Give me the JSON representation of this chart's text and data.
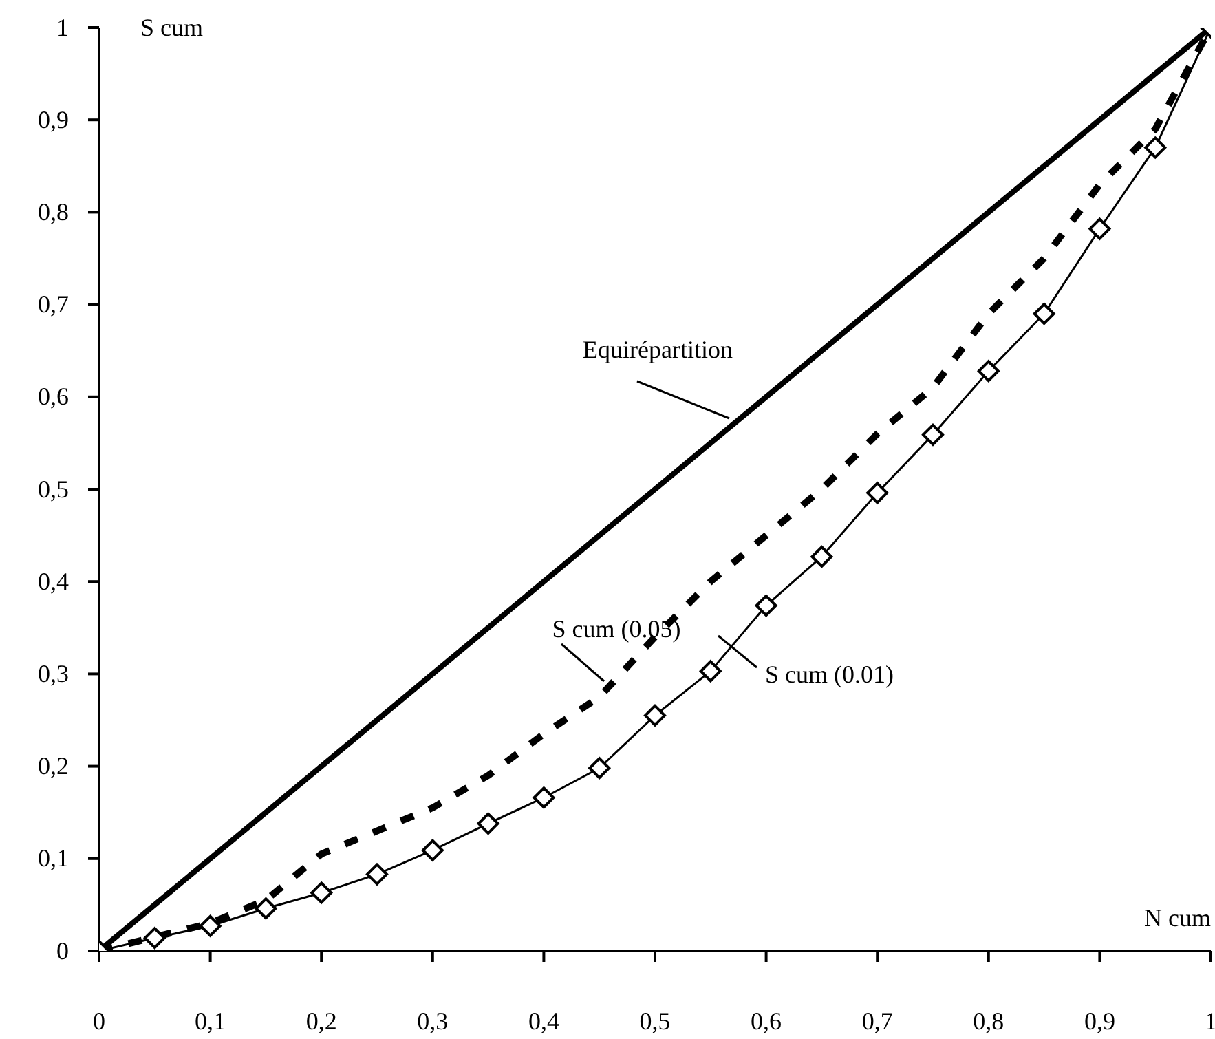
{
  "chart_data": {
    "type": "line",
    "xlabel": "N cum",
    "ylabel": "S cum",
    "xlim": [
      0,
      1
    ],
    "ylim": [
      0,
      1
    ],
    "xticks": [
      0,
      {
        "value": 0.1,
        "label": "0,1"
      },
      {
        "value": 0.2,
        "label": "0,2"
      },
      {
        "value": 0.3,
        "label": "0,3"
      },
      {
        "value": 0.4,
        "label": "0,4"
      },
      {
        "value": 0.5,
        "label": "0,5"
      },
      {
        "value": 0.6,
        "label": "0,6"
      },
      {
        "value": 0.7,
        "label": "0,7"
      },
      {
        "value": 0.8,
        "label": "0,8"
      },
      {
        "value": 0.9,
        "label": "0,9"
      },
      1
    ],
    "yticks": [
      0,
      {
        "value": 0.1,
        "label": "0,1"
      },
      {
        "value": 0.2,
        "label": "0,2"
      },
      {
        "value": 0.3,
        "label": "0,3"
      },
      {
        "value": 0.4,
        "label": "0,4"
      },
      {
        "value": 0.5,
        "label": "0,5"
      },
      {
        "value": 0.6,
        "label": "0,6"
      },
      {
        "value": 0.7,
        "label": "0,7"
      },
      {
        "value": 0.8,
        "label": "0,8"
      },
      {
        "value": 0.9,
        "label": "0,9"
      },
      1
    ],
    "grid": false,
    "legend": false,
    "series": [
      {
        "name": "Equirépartition",
        "color": "#000000",
        "line_style": "solid",
        "marker": "none",
        "x": [
          0,
          0.1,
          0.2,
          0.3,
          0.4,
          0.5,
          0.6,
          0.7,
          0.8,
          0.9,
          1
        ],
        "values": [
          0,
          0.1,
          0.2,
          0.3,
          0.4,
          0.5,
          0.6,
          0.7,
          0.8,
          0.9,
          1
        ]
      },
      {
        "name": "S cum (0.05)",
        "color": "#000000",
        "line_style": "dashed",
        "marker": "none",
        "x": [
          0,
          0.05,
          0.1,
          0.15,
          0.2,
          0.25,
          0.3,
          0.35,
          0.4,
          0.45,
          0.5,
          0.55,
          0.6,
          0.65,
          0.7,
          0.75,
          0.8,
          0.85,
          0.9,
          0.95,
          1
        ],
        "values": [
          0,
          0.015,
          0.03,
          0.055,
          0.105,
          0.13,
          0.155,
          0.19,
          0.235,
          0.275,
          0.34,
          0.4,
          0.45,
          0.5,
          0.56,
          0.61,
          0.69,
          0.75,
          0.83,
          0.89,
          1
        ]
      },
      {
        "name": "S cum (0.01)",
        "color": "#000000",
        "line_style": "solid",
        "marker": "diamond",
        "x": [
          0,
          0.05,
          0.1,
          0.15,
          0.2,
          0.25,
          0.3,
          0.35,
          0.4,
          0.45,
          0.5,
          0.55,
          0.6,
          0.65,
          0.7,
          0.75,
          0.8,
          0.85,
          0.9,
          0.95,
          1
        ],
        "values": [
          0,
          0.014,
          0.027,
          0.046,
          0.063,
          0.083,
          0.109,
          0.138,
          0.166,
          0.198,
          0.255,
          0.303,
          0.374,
          0.427,
          0.496,
          0.559,
          0.628,
          0.69,
          0.782,
          0.87,
          1
        ]
      }
    ]
  }
}
